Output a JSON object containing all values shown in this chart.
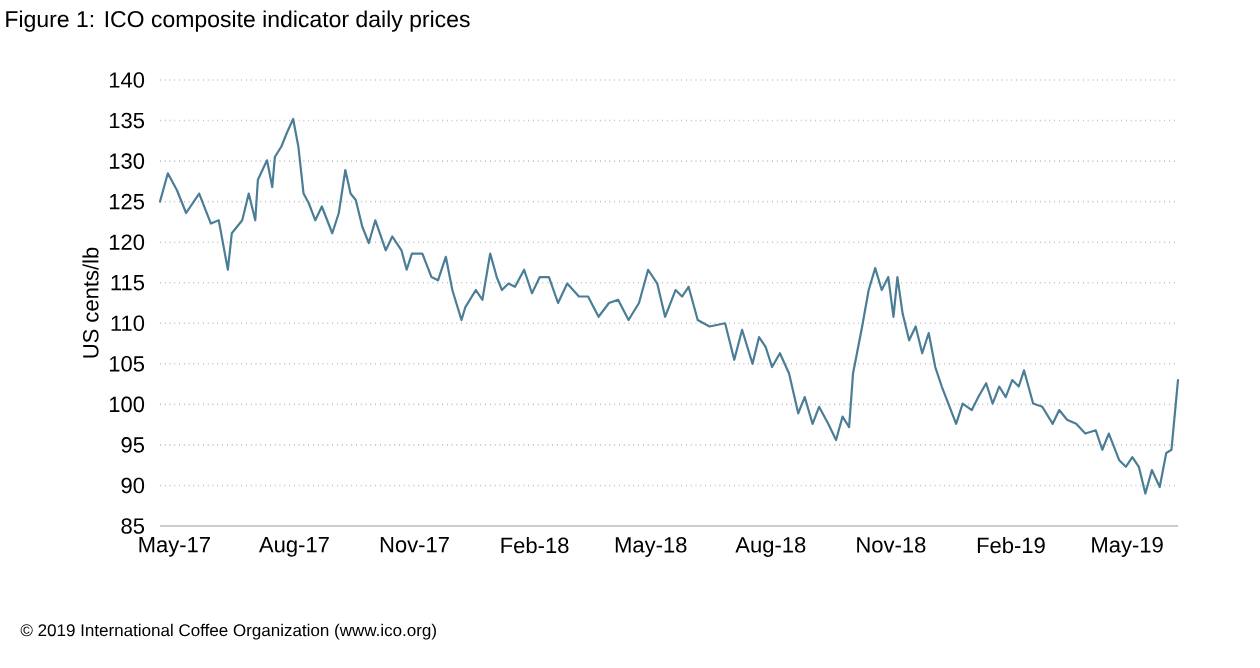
{
  "chart_data": {
    "type": "line",
    "title": "Figure 1: ICO composite indicator daily prices",
    "ylabel": "US cents/lb",
    "annotations": [
      "© 2019 International Coffee Organization (www.ico.org)"
    ],
    "xlim": [
      "2017-04-20",
      "2019-06-09"
    ],
    "ylim": [
      85,
      140
    ],
    "yticks": [
      85,
      90,
      95,
      100,
      105,
      110,
      115,
      120,
      125,
      130,
      135,
      140
    ],
    "xticks": [
      {
        "value": "2017-05-01",
        "label": "May-17"
      },
      {
        "value": "2017-08-01",
        "label": "Aug-17"
      },
      {
        "value": "2017-11-01",
        "label": "Nov-17"
      },
      {
        "value": "2018-02-01",
        "label": "Feb-18"
      },
      {
        "value": "2018-05-01",
        "label": "May-18"
      },
      {
        "value": "2018-08-01",
        "label": "Aug-18"
      },
      {
        "value": "2018-11-01",
        "label": "Nov-18"
      },
      {
        "value": "2019-02-01",
        "label": "Feb-19"
      },
      {
        "value": "2019-05-01",
        "label": "May-19"
      }
    ],
    "grid": "y",
    "marker": "none",
    "line_style": "solid",
    "series": [
      {
        "color": "#4a7d96",
        "x": [
          "2017-04-20",
          "2017-04-26",
          "2017-05-03",
          "2017-05-10",
          "2017-05-20",
          "2017-05-29",
          "2017-06-04",
          "2017-06-11",
          "2017-06-14",
          "2017-06-22",
          "2017-06-27",
          "2017-07-02",
          "2017-07-04",
          "2017-07-11",
          "2017-07-15",
          "2017-07-17",
          "2017-07-22",
          "2017-07-26",
          "2017-07-31",
          "2017-08-04",
          "2017-08-08",
          "2017-08-12",
          "2017-08-17",
          "2017-08-22",
          "2017-08-30",
          "2017-09-04",
          "2017-09-09",
          "2017-09-13",
          "2017-09-17",
          "2017-09-22",
          "2017-09-27",
          "2017-10-02",
          "2017-10-10",
          "2017-10-15",
          "2017-10-22",
          "2017-10-26",
          "2017-10-30",
          "2017-11-07",
          "2017-11-14",
          "2017-11-19",
          "2017-11-25",
          "2017-11-30",
          "2017-12-07",
          "2017-12-10",
          "2017-12-18",
          "2017-12-23",
          "2017-12-29",
          "2018-01-03",
          "2018-01-07",
          "2018-01-12",
          "2018-01-17",
          "2018-01-24",
          "2018-01-30",
          "2018-02-05",
          "2018-02-12",
          "2018-02-19",
          "2018-02-26",
          "2018-03-07",
          "2018-03-14",
          "2018-03-22",
          "2018-03-30",
          "2018-04-06",
          "2018-04-14",
          "2018-04-22",
          "2018-04-29",
          "2018-05-06",
          "2018-05-12",
          "2018-05-20",
          "2018-05-25",
          "2018-05-30",
          "2018-06-06",
          "2018-06-15",
          "2018-06-27",
          "2018-07-04",
          "2018-07-10",
          "2018-07-18",
          "2018-07-23",
          "2018-07-28",
          "2018-08-02",
          "2018-08-08",
          "2018-08-15",
          "2018-08-22",
          "2018-08-27",
          "2018-09-02",
          "2018-09-07",
          "2018-09-14",
          "2018-09-20",
          "2018-09-25",
          "2018-09-30",
          "2018-10-03",
          "2018-10-10",
          "2018-10-15",
          "2018-10-20",
          "2018-10-25",
          "2018-10-30",
          "2018-11-03",
          "2018-11-06",
          "2018-11-10",
          "2018-11-15",
          "2018-11-20",
          "2018-11-25",
          "2018-11-30",
          "2018-12-05",
          "2018-12-10",
          "2018-12-16",
          "2018-12-21",
          "2018-12-26",
          "2019-01-02",
          "2019-01-07",
          "2019-01-13",
          "2019-01-18",
          "2019-01-23",
          "2019-01-28",
          "2019-02-02",
          "2019-02-07",
          "2019-02-11",
          "2019-02-18",
          "2019-02-25",
          "2019-03-05",
          "2019-03-10",
          "2019-03-16",
          "2019-03-23",
          "2019-03-30",
          "2019-04-07",
          "2019-04-12",
          "2019-04-17",
          "2019-04-25",
          "2019-04-30",
          "2019-05-05",
          "2019-05-10",
          "2019-05-15",
          "2019-05-20",
          "2019-05-26",
          "2019-05-31",
          "2019-06-04",
          "2019-06-09"
        ],
        "values": [
          125.0,
          128.5,
          126.4,
          123.6,
          126.0,
          122.3,
          122.7,
          116.6,
          121.1,
          122.7,
          126.0,
          122.7,
          127.7,
          130.1,
          126.8,
          130.5,
          131.8,
          133.4,
          135.2,
          131.8,
          126.0,
          124.8,
          122.7,
          124.4,
          121.1,
          123.6,
          128.9,
          126.0,
          125.2,
          121.9,
          119.9,
          122.7,
          119.0,
          120.7,
          119.0,
          116.6,
          118.6,
          118.6,
          115.7,
          115.3,
          118.2,
          114.1,
          110.4,
          112.0,
          114.1,
          112.9,
          118.6,
          115.7,
          114.1,
          114.9,
          114.5,
          116.6,
          113.7,
          115.7,
          115.7,
          112.5,
          114.9,
          113.3,
          113.3,
          110.8,
          112.5,
          112.9,
          110.4,
          112.5,
          116.6,
          114.9,
          110.8,
          114.1,
          113.3,
          114.5,
          110.4,
          109.6,
          110.0,
          105.5,
          109.2,
          105.0,
          108.3,
          107.1,
          104.6,
          106.3,
          103.8,
          98.9,
          100.9,
          97.6,
          99.7,
          97.6,
          95.6,
          98.5,
          97.2,
          103.8,
          109.6,
          114.1,
          116.8,
          114.1,
          115.7,
          110.8,
          115.7,
          111.2,
          107.9,
          109.6,
          106.3,
          108.8,
          104.6,
          102.2,
          99.7,
          97.6,
          100.1,
          99.3,
          100.9,
          102.6,
          100.1,
          102.2,
          100.9,
          103.0,
          102.2,
          104.2,
          100.1,
          99.7,
          97.6,
          99.3,
          98.1,
          97.6,
          96.4,
          96.8,
          94.4,
          96.4,
          93.1,
          92.3,
          93.5,
          92.3,
          89.0,
          91.9,
          89.8,
          94.0,
          94.4,
          103.0
        ]
      }
    ]
  }
}
